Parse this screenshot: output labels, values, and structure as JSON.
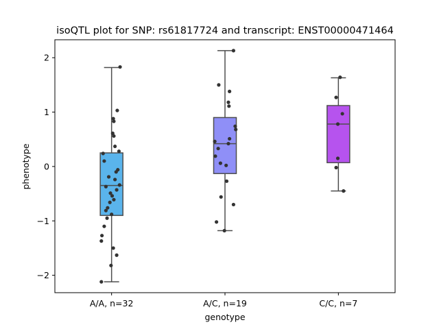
{
  "chart_data": {
    "type": "box",
    "title": "isoQTL plot for SNP: rs61817724 and transcript: ENST00000471464",
    "xlabel": "genotype",
    "ylabel": "phenotype",
    "categories": [
      "A/A, n=32",
      "A/C, n=19",
      "C/C, n=7"
    ],
    "ylim": [
      -2.32,
      2.33
    ],
    "yticks": [
      -2,
      -1,
      0,
      1,
      2
    ],
    "ytick_labels": [
      "−2",
      "−1",
      "0",
      "1",
      "2"
    ],
    "grid": false,
    "colors": {
      "box_fills": [
        "#5ab4ec",
        "#8f8ff7",
        "#b653ee"
      ],
      "box_edge": "#4d4d4d",
      "points": "#333333",
      "axes": "#000000"
    },
    "boxes": [
      {
        "category": "A/A, n=32",
        "whisker_low": -2.12,
        "q1": -0.9,
        "median": -0.35,
        "q3": 0.25,
        "whisker_high": 1.82
      },
      {
        "category": "A/C, n=19",
        "whisker_low": -1.18,
        "q1": -0.13,
        "median": 0.42,
        "q3": 0.9,
        "whisker_high": 2.13
      },
      {
        "category": "C/C, n=7",
        "whisker_low": -0.45,
        "q1": 0.07,
        "median": 0.78,
        "q3": 1.12,
        "whisker_high": 1.63
      }
    ],
    "points": [
      [
        [
          0.15,
          1.83
        ],
        [
          0.1,
          1.03
        ],
        [
          0.03,
          0.88
        ],
        [
          0.04,
          0.83
        ],
        [
          0.02,
          0.61
        ],
        [
          0.04,
          0.56
        ],
        [
          0.06,
          0.37
        ],
        [
          0.13,
          0.28
        ],
        [
          -0.15,
          0.24
        ],
        [
          -0.13,
          0.1
        ],
        [
          0.11,
          -0.06
        ],
        [
          0.08,
          -0.1
        ],
        [
          -0.05,
          -0.19
        ],
        [
          0.06,
          -0.24
        ],
        [
          -0.1,
          -0.37
        ],
        [
          0.14,
          -0.34
        ],
        [
          0.09,
          -0.43
        ],
        [
          -0.02,
          -0.49
        ],
        [
          0.01,
          -0.54
        ],
        [
          0.04,
          -0.61
        ],
        [
          -0.03,
          -0.66
        ],
        [
          -0.07,
          -0.76
        ],
        [
          -0.1,
          -0.81
        ],
        [
          0.0,
          -0.88
        ],
        [
          -0.08,
          -0.95
        ],
        [
          -0.13,
          -1.1
        ],
        [
          -0.17,
          -1.27
        ],
        [
          -0.18,
          -1.37
        ],
        [
          0.03,
          -1.5
        ],
        [
          0.09,
          -1.63
        ],
        [
          -0.01,
          -1.82
        ],
        [
          -0.18,
          -2.12
        ]
      ],
      [
        [
          0.15,
          2.13
        ],
        [
          -0.11,
          1.5
        ],
        [
          0.08,
          1.38
        ],
        [
          0.06,
          1.18
        ],
        [
          0.07,
          1.11
        ],
        [
          0.18,
          0.74
        ],
        [
          0.19,
          0.68
        ],
        [
          0.08,
          0.51
        ],
        [
          -0.18,
          0.46
        ],
        [
          0.06,
          0.42
        ],
        [
          -0.12,
          0.33
        ],
        [
          -0.17,
          0.19
        ],
        [
          -0.08,
          0.06
        ],
        [
          0.02,
          0.02
        ],
        [
          0.03,
          -0.27
        ],
        [
          -0.07,
          -0.56
        ],
        [
          0.15,
          -0.7
        ],
        [
          -0.15,
          -1.02
        ],
        [
          -0.01,
          -1.18
        ]
      ],
      [
        [
          0.03,
          1.64
        ],
        [
          -0.04,
          1.27
        ],
        [
          0.07,
          0.97
        ],
        [
          -0.01,
          0.78
        ],
        [
          -0.01,
          0.15
        ],
        [
          -0.04,
          -0.02
        ],
        [
          0.09,
          -0.45
        ]
      ]
    ]
  }
}
